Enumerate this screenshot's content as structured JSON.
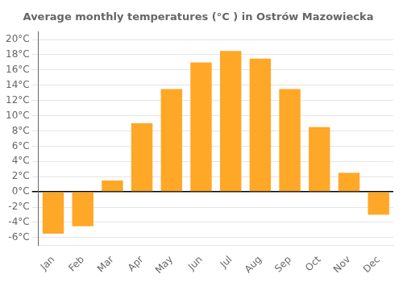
{
  "chart_data": {
    "type": "bar",
    "title": "Average monthly temperatures (°C ) in Ostrów Mazowiecka",
    "categories": [
      "Jan",
      "Feb",
      "Mar",
      "Apr",
      "May",
      "Jun",
      "Jul",
      "Aug",
      "Sep",
      "Oct",
      "Nov",
      "Dec"
    ],
    "values": [
      -5.5,
      -4.5,
      1.5,
      9.0,
      13.5,
      17.0,
      18.5,
      17.5,
      13.5,
      8.5,
      2.5,
      -3.0
    ],
    "color": "#FFA726",
    "ylim": [
      -7,
      21
    ],
    "yticks": [
      {
        "value": -6,
        "label": "-6°C"
      },
      {
        "value": -4,
        "label": "-4°C"
      },
      {
        "value": -2,
        "label": "-2°C"
      },
      {
        "value": 0,
        "label": "0°C"
      },
      {
        "value": 2,
        "label": "2°C"
      },
      {
        "value": 4,
        "label": "4°C"
      },
      {
        "value": 6,
        "label": "6°C"
      },
      {
        "value": 8,
        "label": "8°C"
      },
      {
        "value": 10,
        "label": "10°C"
      },
      {
        "value": 12,
        "label": "12°C"
      },
      {
        "value": 14,
        "label": "14°C"
      },
      {
        "value": 16,
        "label": "16°C"
      },
      {
        "value": 18,
        "label": "18°C"
      },
      {
        "value": 20,
        "label": "20°C"
      }
    ],
    "grid": true
  }
}
